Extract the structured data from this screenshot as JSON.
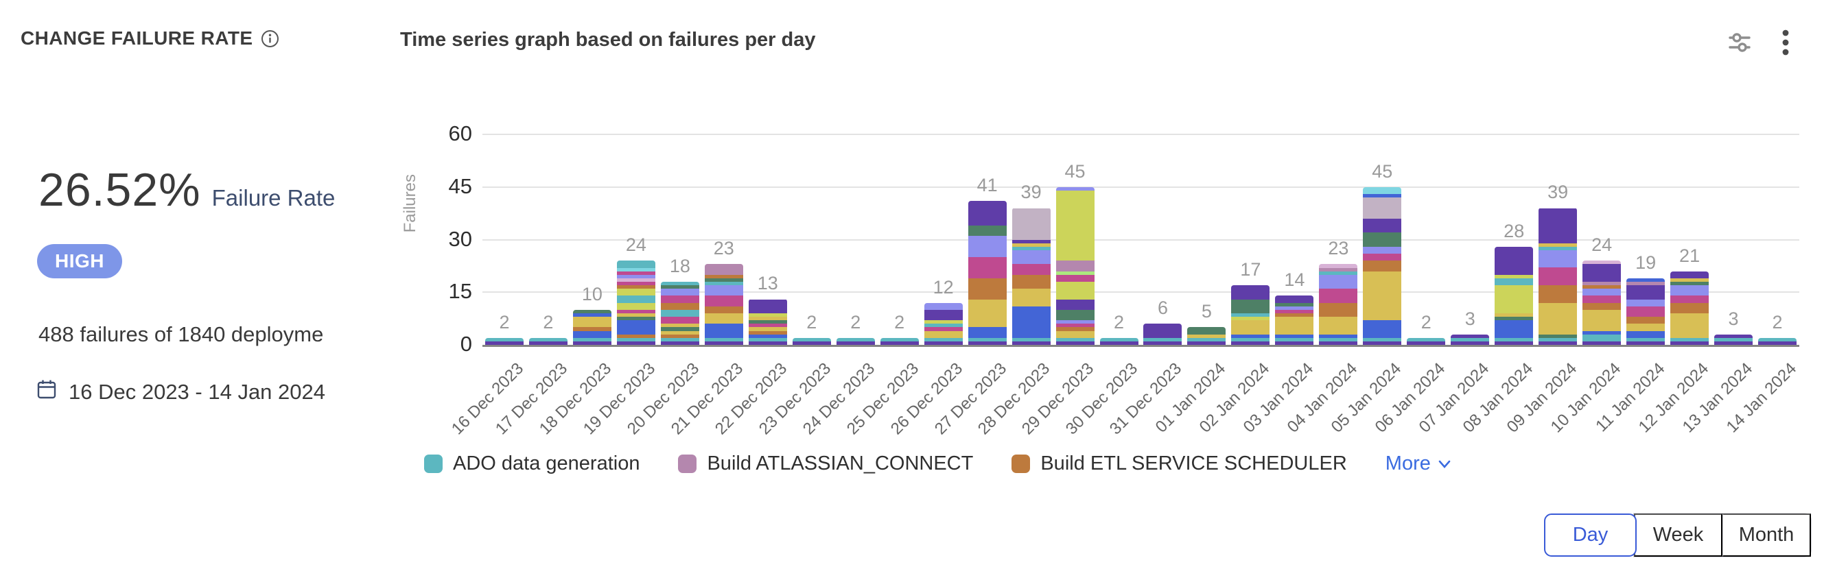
{
  "header": {
    "title": "CHANGE FAILURE RATE",
    "chart_title": "Time series graph based on failures per day"
  },
  "stats": {
    "rate": "26.52%",
    "rate_label": "Failure Rate",
    "severity": "HIGH",
    "summary": "488 failures of 1840 deployme",
    "date_range": "16 Dec 2023 - 14 Jan 2024"
  },
  "toolbar": {
    "filter_icon": "sliders-icon",
    "menu_icon": "kebab-menu-icon"
  },
  "legend": [
    {
      "label": "ADO data generation",
      "color": "#5cb7c0"
    },
    {
      "label": "Build ATLASSIAN_CONNECT",
      "color": "#b487ae"
    },
    {
      "label": "Build ETL SERVICE SCHEDULER",
      "color": "#bd7a3d"
    }
  ],
  "legend_more": {
    "label": "More"
  },
  "time_toggle": {
    "options": [
      "Day",
      "Week",
      "Month"
    ],
    "selected": "Day"
  },
  "colors": {
    "badge_bg": "#7e96e8",
    "link_blue": "#3a6be0",
    "toggle_blue": "#3a5bd7"
  },
  "chart_data": {
    "type": "bar",
    "stacked": true,
    "title": "Time series graph based on failures per day",
    "ylabel": "Failures",
    "ylim": [
      0,
      60
    ],
    "yticks": [
      0,
      15,
      30,
      45,
      60
    ],
    "grid": true,
    "legend_position": "bottom",
    "palette": {
      "purple": "#5f3da8",
      "teal": "#5cb7c0",
      "blue": "#4365d6",
      "mustard": "#d8bf55",
      "orange": "#bd7a3d",
      "green": "#4e8066",
      "magenta": "#bf4a90",
      "periwinkle": "#8f8fee",
      "lime": "#ccd45a",
      "mauve": "#b487ae",
      "lilac_gray": "#c2b2c4",
      "pink_light": "#d8b2d6",
      "green_light": "#abe87e",
      "cyan": "#7fd6e2"
    },
    "categories": [
      "16 Dec 2023",
      "17 Dec 2023",
      "18 Dec 2023",
      "19 Dec 2023",
      "20 Dec 2023",
      "21 Dec 2023",
      "22 Dec 2023",
      "23 Dec 2023",
      "24 Dec 2023",
      "25 Dec 2023",
      "26 Dec 2023",
      "27 Dec 2023",
      "28 Dec 2023",
      "29 Dec 2023",
      "30 Dec 2023",
      "31 Dec 2023",
      "01 Jan 2024",
      "02 Jan 2024",
      "03 Jan 2024",
      "04 Jan 2024",
      "05 Jan 2024",
      "06 Jan 2024",
      "07 Jan 2024",
      "08 Jan 2024",
      "09 Jan 2024",
      "10 Jan 2024",
      "11 Jan 2024",
      "12 Jan 2024",
      "13 Jan 2024",
      "14 Jan 2024"
    ],
    "totals": [
      2,
      2,
      10,
      24,
      18,
      23,
      13,
      2,
      2,
      2,
      12,
      41,
      39,
      45,
      2,
      6,
      5,
      17,
      14,
      23,
      45,
      2,
      3,
      28,
      39,
      24,
      19,
      21,
      3,
      2
    ],
    "bars": [
      {
        "date": "16 Dec 2023",
        "total": 2,
        "stack": [
          [
            "purple",
            1
          ],
          [
            "teal",
            1
          ]
        ]
      },
      {
        "date": "17 Dec 2023",
        "total": 2,
        "stack": [
          [
            "purple",
            1
          ],
          [
            "teal",
            1
          ]
        ]
      },
      {
        "date": "18 Dec 2023",
        "total": 10,
        "stack": [
          [
            "purple",
            1
          ],
          [
            "teal",
            1
          ],
          [
            "blue",
            2
          ],
          [
            "orange",
            1
          ],
          [
            "mustard",
            3
          ],
          [
            "blue",
            1
          ],
          [
            "green",
            1
          ]
        ]
      },
      {
        "date": "19 Dec 2023",
        "total": 24,
        "stack": [
          [
            "purple",
            1
          ],
          [
            "teal",
            1
          ],
          [
            "orange",
            1
          ],
          [
            "blue",
            4
          ],
          [
            "green",
            1
          ],
          [
            "mustard",
            1
          ],
          [
            "magenta",
            1
          ],
          [
            "lime",
            2
          ],
          [
            "teal",
            2
          ],
          [
            "lime",
            2
          ],
          [
            "orange",
            1
          ],
          [
            "magenta",
            1
          ],
          [
            "pink_light",
            1
          ],
          [
            "periwinkle",
            1
          ],
          [
            "magenta",
            1
          ],
          [
            "cyan",
            1
          ],
          [
            "teal",
            2
          ]
        ]
      },
      {
        "date": "20 Dec 2023",
        "total": 18,
        "stack": [
          [
            "purple",
            1
          ],
          [
            "teal",
            1
          ],
          [
            "orange",
            1
          ],
          [
            "mustard",
            1
          ],
          [
            "green",
            1
          ],
          [
            "mustard",
            1
          ],
          [
            "magenta",
            2
          ],
          [
            "teal",
            2
          ],
          [
            "orange",
            2
          ],
          [
            "magenta",
            2
          ],
          [
            "periwinkle",
            2
          ],
          [
            "green",
            1
          ],
          [
            "teal",
            1
          ]
        ]
      },
      {
        "date": "21 Dec 2023",
        "total": 23,
        "stack": [
          [
            "purple",
            1
          ],
          [
            "teal",
            1
          ],
          [
            "blue",
            4
          ],
          [
            "mustard",
            3
          ],
          [
            "orange",
            2
          ],
          [
            "magenta",
            3
          ],
          [
            "periwinkle",
            3
          ],
          [
            "teal",
            1
          ],
          [
            "green",
            1
          ],
          [
            "orange",
            1
          ],
          [
            "mauve",
            3
          ]
        ]
      },
      {
        "date": "22 Dec 2023",
        "total": 13,
        "stack": [
          [
            "purple",
            1
          ],
          [
            "teal",
            1
          ],
          [
            "blue",
            1
          ],
          [
            "orange",
            1
          ],
          [
            "mustard",
            1
          ],
          [
            "magenta",
            1
          ],
          [
            "green",
            1
          ],
          [
            "mustard",
            1
          ],
          [
            "lime",
            1
          ],
          [
            "purple",
            4
          ]
        ]
      },
      {
        "date": "23 Dec 2023",
        "total": 2,
        "stack": [
          [
            "purple",
            1
          ],
          [
            "teal",
            1
          ]
        ]
      },
      {
        "date": "24 Dec 2023",
        "total": 2,
        "stack": [
          [
            "purple",
            1
          ],
          [
            "teal",
            1
          ]
        ]
      },
      {
        "date": "25 Dec 2023",
        "total": 2,
        "stack": [
          [
            "purple",
            1
          ],
          [
            "teal",
            1
          ]
        ]
      },
      {
        "date": "26 Dec 2023",
        "total": 12,
        "stack": [
          [
            "purple",
            1
          ],
          [
            "teal",
            1
          ],
          [
            "mustard",
            2
          ],
          [
            "magenta",
            1
          ],
          [
            "teal",
            1
          ],
          [
            "lime",
            1
          ],
          [
            "purple",
            3
          ],
          [
            "periwinkle",
            2
          ]
        ]
      },
      {
        "date": "27 Dec 2023",
        "total": 41,
        "stack": [
          [
            "purple",
            1
          ],
          [
            "teal",
            1
          ],
          [
            "blue",
            3
          ],
          [
            "mustard",
            8
          ],
          [
            "orange",
            6
          ],
          [
            "magenta",
            6
          ],
          [
            "periwinkle",
            6
          ],
          [
            "green",
            3
          ],
          [
            "purple",
            7
          ]
        ]
      },
      {
        "date": "28 Dec 2023",
        "total": 39,
        "stack": [
          [
            "purple",
            1
          ],
          [
            "teal",
            1
          ],
          [
            "blue",
            9
          ],
          [
            "mustard",
            5
          ],
          [
            "orange",
            4
          ],
          [
            "magenta",
            3
          ],
          [
            "periwinkle",
            4
          ],
          [
            "teal",
            1
          ],
          [
            "mustard",
            1
          ],
          [
            "purple",
            1
          ],
          [
            "lilac_gray",
            9
          ]
        ]
      },
      {
        "date": "29 Dec 2023",
        "total": 45,
        "stack": [
          [
            "purple",
            1
          ],
          [
            "teal",
            1
          ],
          [
            "mustard",
            2
          ],
          [
            "orange",
            1
          ],
          [
            "magenta",
            1
          ],
          [
            "periwinkle",
            1
          ],
          [
            "green",
            3
          ],
          [
            "purple",
            3
          ],
          [
            "lime",
            5
          ],
          [
            "magenta",
            2
          ],
          [
            "green_light",
            1
          ],
          [
            "mauve",
            3
          ],
          [
            "lime",
            20
          ],
          [
            "periwinkle",
            1
          ]
        ]
      },
      {
        "date": "30 Dec 2023",
        "total": 2,
        "stack": [
          [
            "purple",
            1
          ],
          [
            "teal",
            1
          ]
        ]
      },
      {
        "date": "31 Dec 2023",
        "total": 6,
        "stack": [
          [
            "purple",
            1
          ],
          [
            "teal",
            1
          ],
          [
            "purple",
            4
          ]
        ]
      },
      {
        "date": "01 Jan 2024",
        "total": 5,
        "stack": [
          [
            "purple",
            1
          ],
          [
            "teal",
            1
          ],
          [
            "mustard",
            1
          ],
          [
            "green",
            2
          ]
        ]
      },
      {
        "date": "02 Jan 2024",
        "total": 17,
        "stack": [
          [
            "purple",
            1
          ],
          [
            "teal",
            1
          ],
          [
            "blue",
            1
          ],
          [
            "mustard",
            4
          ],
          [
            "lime",
            1
          ],
          [
            "teal",
            1
          ],
          [
            "green",
            4
          ],
          [
            "purple",
            4
          ]
        ]
      },
      {
        "date": "03 Jan 2024",
        "total": 14,
        "stack": [
          [
            "purple",
            1
          ],
          [
            "teal",
            1
          ],
          [
            "blue",
            1
          ],
          [
            "mustard",
            5
          ],
          [
            "orange",
            1
          ],
          [
            "magenta",
            1
          ],
          [
            "periwinkle",
            1
          ],
          [
            "green",
            1
          ],
          [
            "purple",
            2
          ]
        ]
      },
      {
        "date": "04 Jan 2024",
        "total": 23,
        "stack": [
          [
            "purple",
            1
          ],
          [
            "teal",
            1
          ],
          [
            "blue",
            1
          ],
          [
            "mustard",
            5
          ],
          [
            "orange",
            4
          ],
          [
            "magenta",
            4
          ],
          [
            "periwinkle",
            4
          ],
          [
            "teal",
            1
          ],
          [
            "mauve",
            1
          ],
          [
            "pink_light",
            1
          ]
        ]
      },
      {
        "date": "05 Jan 2024",
        "total": 45,
        "stack": [
          [
            "purple",
            1
          ],
          [
            "teal",
            1
          ],
          [
            "blue",
            5
          ],
          [
            "mustard",
            14
          ],
          [
            "orange",
            3
          ],
          [
            "magenta",
            2
          ],
          [
            "periwinkle",
            2
          ],
          [
            "green",
            4
          ],
          [
            "purple",
            4
          ],
          [
            "lilac_gray",
            6
          ],
          [
            "blue",
            1
          ],
          [
            "cyan",
            2
          ]
        ]
      },
      {
        "date": "06 Jan 2024",
        "total": 2,
        "stack": [
          [
            "purple",
            1
          ],
          [
            "teal",
            1
          ]
        ]
      },
      {
        "date": "07 Jan 2024",
        "total": 3,
        "stack": [
          [
            "purple",
            1
          ],
          [
            "teal",
            1
          ],
          [
            "purple",
            1
          ]
        ]
      },
      {
        "date": "08 Jan 2024",
        "total": 28,
        "stack": [
          [
            "purple",
            1
          ],
          [
            "teal",
            1
          ],
          [
            "blue",
            5
          ],
          [
            "green",
            1
          ],
          [
            "mustard",
            1
          ],
          [
            "lime",
            8
          ],
          [
            "teal",
            2
          ],
          [
            "lime",
            1
          ],
          [
            "purple",
            8
          ]
        ]
      },
      {
        "date": "09 Jan 2024",
        "total": 39,
        "stack": [
          [
            "purple",
            1
          ],
          [
            "teal",
            1
          ],
          [
            "green",
            1
          ],
          [
            "mustard",
            9
          ],
          [
            "orange",
            5
          ],
          [
            "magenta",
            5
          ],
          [
            "periwinkle",
            5
          ],
          [
            "teal",
            1
          ],
          [
            "mustard",
            1
          ],
          [
            "purple",
            10
          ]
        ]
      },
      {
        "date": "10 Jan 2024",
        "total": 24,
        "stack": [
          [
            "purple",
            1
          ],
          [
            "teal",
            2
          ],
          [
            "blue",
            1
          ],
          [
            "mustard",
            6
          ],
          [
            "orange",
            2
          ],
          [
            "magenta",
            2
          ],
          [
            "periwinkle",
            2
          ],
          [
            "orange",
            1
          ],
          [
            "mauve",
            1
          ],
          [
            "purple",
            5
          ],
          [
            "pink_light",
            1
          ]
        ]
      },
      {
        "date": "11 Jan 2024",
        "total": 19,
        "stack": [
          [
            "purple",
            1
          ],
          [
            "teal",
            1
          ],
          [
            "blue",
            2
          ],
          [
            "mustard",
            2
          ],
          [
            "orange",
            2
          ],
          [
            "magenta",
            3
          ],
          [
            "periwinkle",
            2
          ],
          [
            "purple",
            4
          ],
          [
            "mauve",
            1
          ],
          [
            "blue",
            1
          ]
        ]
      },
      {
        "date": "12 Jan 2024",
        "total": 21,
        "stack": [
          [
            "purple",
            1
          ],
          [
            "teal",
            1
          ],
          [
            "mustard",
            7
          ],
          [
            "orange",
            3
          ],
          [
            "magenta",
            2
          ],
          [
            "periwinkle",
            3
          ],
          [
            "green",
            1
          ],
          [
            "mustard",
            1
          ],
          [
            "purple",
            2
          ]
        ]
      },
      {
        "date": "13 Jan 2024",
        "total": 3,
        "stack": [
          [
            "purple",
            1
          ],
          [
            "teal",
            1
          ],
          [
            "purple",
            1
          ]
        ]
      },
      {
        "date": "14 Jan 2024",
        "total": 2,
        "stack": [
          [
            "purple",
            1
          ],
          [
            "teal",
            1
          ]
        ]
      }
    ]
  }
}
